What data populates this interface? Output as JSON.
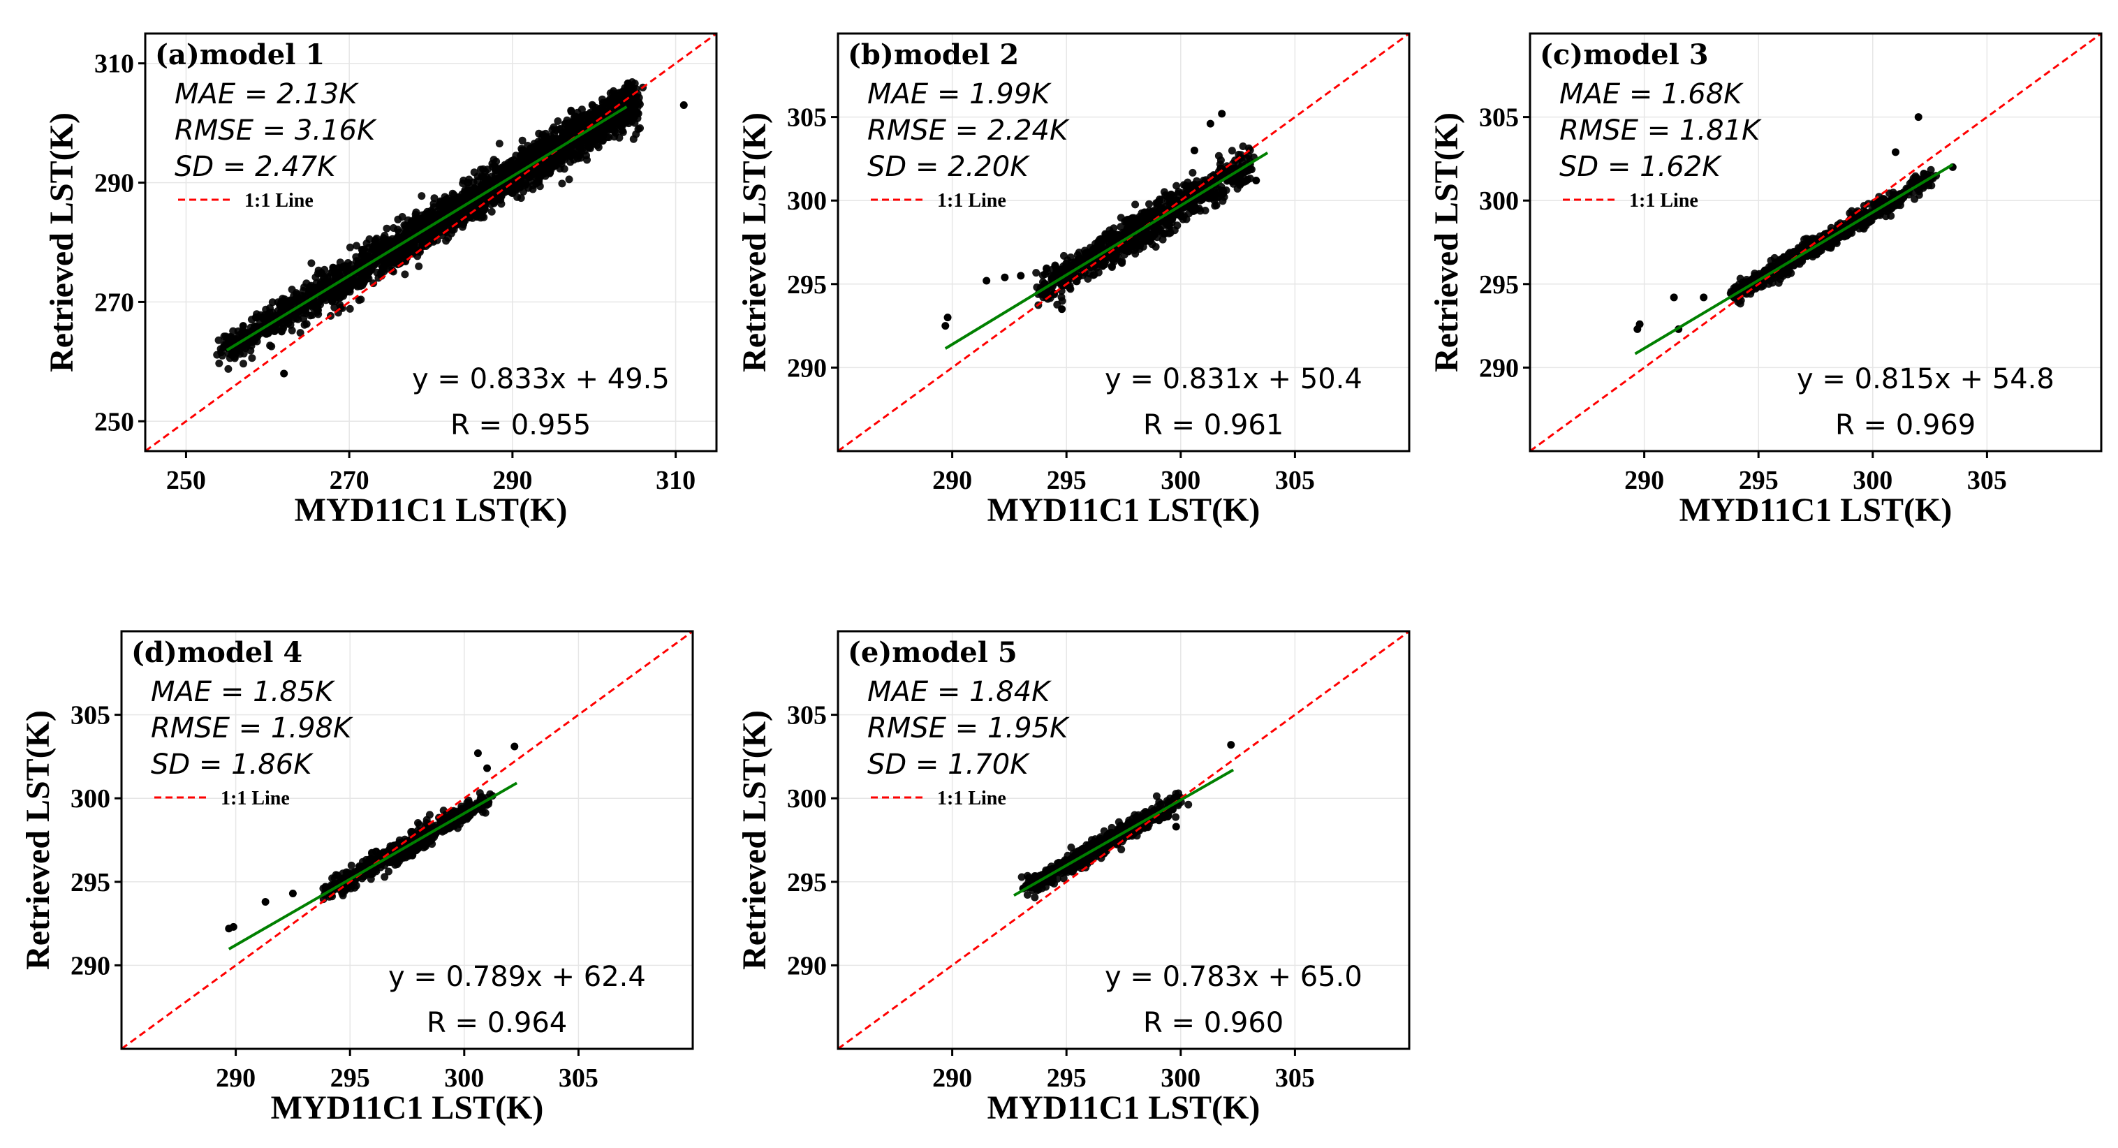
{
  "figure": {
    "xlabel": "MYD11C1 LST(K)",
    "ylabel": "Retrieved LST(K)",
    "legend_label": "1:1 Line",
    "colors": {
      "identity_line": "#ff0000",
      "fit_line": "#008000",
      "points": "#000000",
      "frame": "#000000",
      "grid": "#e6e6e6"
    }
  },
  "chart_data": [
    {
      "type": "scatter",
      "title": "(a)model 1",
      "xlim": [
        245,
        315
      ],
      "ylim": [
        245,
        315
      ],
      "xticks": [
        250,
        270,
        290,
        310
      ],
      "yticks": [
        250,
        270,
        290,
        310
      ],
      "stats": {
        "mae": "MAE = 2.13K",
        "rmse": "RMSE = 3.16K",
        "sd": "SD = 2.47K"
      },
      "equation": "y = 0.833x + 49.5",
      "r_text": "R = 0.955",
      "fit": {
        "slope": 0.833,
        "intercept": 49.5,
        "x_range": [
          255,
          304
        ]
      },
      "cloud": {
        "x_range": [
          255,
          304
        ],
        "x_mode": 292,
        "spread": 3.2,
        "count": 2600,
        "outliers": [
          [
            311,
            303
          ],
          [
            262,
            258
          ],
          [
            257,
            266
          ]
        ]
      }
    },
    {
      "type": "scatter",
      "title": "(b)model 2",
      "xlim": [
        285,
        310
      ],
      "ylim": [
        285,
        310
      ],
      "xticks": [
        290,
        295,
        300,
        305
      ],
      "yticks": [
        290,
        295,
        300,
        305
      ],
      "stats": {
        "mae": "MAE = 1.99K",
        "rmse": "RMSE = 2.24K",
        "sd": "SD = 2.20K"
      },
      "equation": "y = 0.831x + 50.4",
      "r_text": "R = 0.961",
      "fit": {
        "slope": 0.831,
        "intercept": 50.4,
        "x_range": [
          289.7,
          303.8
        ]
      },
      "cloud": {
        "x_range": [
          294,
          303
        ],
        "x_mode": 298,
        "spread": 1.0,
        "count": 900,
        "outliers": [
          [
            289.7,
            292.5
          ],
          [
            289.8,
            293.0
          ],
          [
            291.5,
            295.2
          ],
          [
            292.3,
            295.4
          ],
          [
            293.0,
            295.5
          ],
          [
            300.6,
            303.0
          ],
          [
            301.3,
            304.6
          ],
          [
            301.8,
            305.2
          ],
          [
            303.3,
            301.2
          ],
          [
            294.8,
            293.5
          ]
        ]
      }
    },
    {
      "type": "scatter",
      "title": "(c)model 3",
      "xlim": [
        285,
        310
      ],
      "ylim": [
        285,
        310
      ],
      "xticks": [
        290,
        295,
        300,
        305
      ],
      "yticks": [
        290,
        295,
        300,
        305
      ],
      "stats": {
        "mae": "MAE = 1.68K",
        "rmse": "RMSE = 1.81K",
        "sd": "SD = 1.62K"
      },
      "equation": "y = 0.815x + 54.8",
      "r_text": "R = 0.969",
      "fit": {
        "slope": 0.815,
        "intercept": 54.8,
        "x_range": [
          289.6,
          303.5
        ]
      },
      "cloud": {
        "x_range": [
          294,
          302.5
        ],
        "x_mode": 297.5,
        "spread": 0.55,
        "count": 700,
        "outliers": [
          [
            289.7,
            292.3
          ],
          [
            289.8,
            292.6
          ],
          [
            291.3,
            294.2
          ],
          [
            291.5,
            292.3
          ],
          [
            292.6,
            294.2
          ],
          [
            302.0,
            305.0
          ],
          [
            303.5,
            302.0
          ],
          [
            301.0,
            302.9
          ]
        ]
      }
    },
    {
      "type": "scatter",
      "title": "(d)model 4",
      "xlim": [
        285,
        310
      ],
      "ylim": [
        285,
        310
      ],
      "xticks": [
        290,
        295,
        300,
        305
      ],
      "yticks": [
        290,
        295,
        300,
        305
      ],
      "stats": {
        "mae": "MAE = 1.85K",
        "rmse": "RMSE = 1.98K",
        "sd": "SD = 1.86K"
      },
      "equation": "y = 0.789x + 62.4",
      "r_text": "R = 0.964",
      "fit": {
        "slope": 0.789,
        "intercept": 62.4,
        "x_range": [
          289.7,
          302.3
        ]
      },
      "cloud": {
        "x_range": [
          294,
          301
        ],
        "x_mode": 297.5,
        "spread": 0.6,
        "count": 650,
        "outliers": [
          [
            289.7,
            292.2
          ],
          [
            289.9,
            292.3
          ],
          [
            291.3,
            293.8
          ],
          [
            292.5,
            294.3
          ],
          [
            300.6,
            302.7
          ],
          [
            302.2,
            303.1
          ],
          [
            301.0,
            301.8
          ]
        ]
      }
    },
    {
      "type": "scatter",
      "title": "(e)model 5",
      "xlim": [
        285,
        310
      ],
      "ylim": [
        285,
        310
      ],
      "xticks": [
        290,
        295,
        300,
        305
      ],
      "yticks": [
        290,
        295,
        300,
        305
      ],
      "stats": {
        "mae": "MAE = 1.84K",
        "rmse": "RMSE = 1.95K",
        "sd": "SD = 1.70K"
      },
      "equation": "y = 0.783x + 65.0",
      "r_text": "R = 0.960",
      "fit": {
        "slope": 0.783,
        "intercept": 65.0,
        "x_range": [
          292.7,
          302.3
        ]
      },
      "cloud": {
        "x_range": [
          293.3,
          300
        ],
        "x_mode": 296.3,
        "spread": 0.6,
        "count": 550,
        "outliers": [
          [
            302.2,
            303.2
          ],
          [
            299.8,
            298.3
          ],
          [
            293.1,
            294.6
          ]
        ]
      }
    }
  ]
}
